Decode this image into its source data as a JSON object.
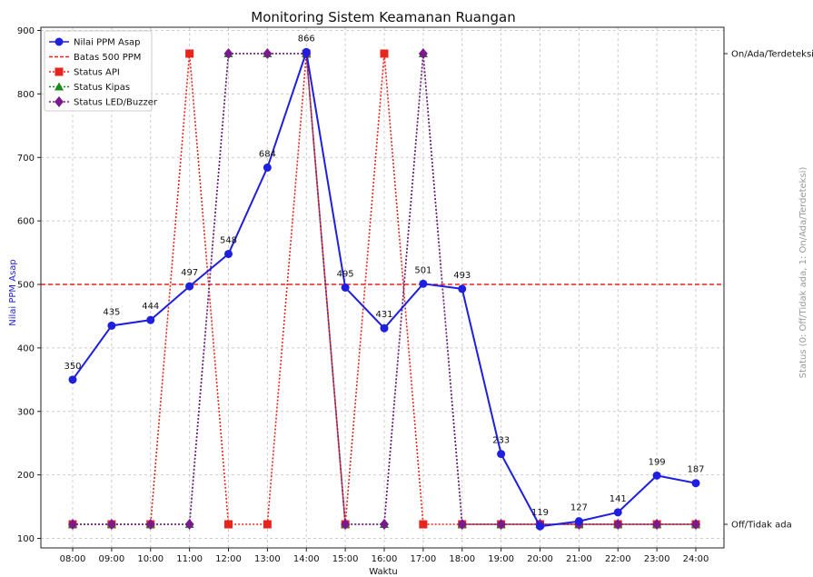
{
  "chart_data": {
    "type": "line",
    "title": "Monitoring Sistem Keamanan Ruangan",
    "xlabel": "Waktu",
    "ylabel": "Nilai PPM Asap",
    "ylabel_right": "Status (0: Off/Tidak ada, 1: On/Ada/Terdeteksi)",
    "categories": [
      "08:00",
      "09:00",
      "10:00",
      "11:00",
      "12:00",
      "13:00",
      "14:00",
      "15:00",
      "16:00",
      "17:00",
      "18:00",
      "19:00",
      "20:00",
      "21:00",
      "22:00",
      "23:00",
      "24:00"
    ],
    "ylim": [
      85,
      905
    ],
    "yticks": [
      100,
      200,
      300,
      400,
      500,
      600,
      700,
      800,
      900
    ],
    "right_ticks": [
      {
        "value": 0,
        "label": "Off/Tidak ada"
      },
      {
        "value": 1,
        "label": "On/Ada/Terdeteksi"
      }
    ],
    "grid": true,
    "legend_position": "top-left",
    "threshold": {
      "name": "Batas 500 PPM",
      "value": 500,
      "color": "#e8241e"
    },
    "series": [
      {
        "name": "Nilai PPM Asap",
        "color": "#1f1fe0",
        "axis": "left",
        "style": "solid",
        "marker": "circle",
        "values": [
          350,
          435,
          444,
          497,
          548,
          684,
          866,
          495,
          431,
          501,
          493,
          233,
          119,
          127,
          141,
          199,
          187
        ]
      },
      {
        "name": "Status API",
        "color": "#e8241e",
        "axis": "right",
        "style": "dotted",
        "marker": "square",
        "values": [
          0,
          0,
          0,
          1,
          0,
          0,
          1,
          0,
          1,
          0,
          0,
          0,
          0,
          0,
          0,
          0,
          0
        ]
      },
      {
        "name": "Status Kipas",
        "color": "#1a8a1a",
        "axis": "right",
        "style": "dotted",
        "marker": "triangle",
        "values": [
          0,
          0,
          0,
          0,
          1,
          1,
          1,
          0,
          0,
          1,
          0,
          0,
          0,
          0,
          0,
          0,
          0
        ]
      },
      {
        "name": "Status LED/Buzzer",
        "color": "#7b1a8c",
        "axis": "right",
        "style": "dotted",
        "marker": "diamond",
        "values": [
          0,
          0,
          0,
          0,
          1,
          1,
          1,
          0,
          0,
          1,
          0,
          0,
          0,
          0,
          0,
          0,
          0
        ]
      }
    ],
    "data_labels": [
      "350",
      "435",
      "444",
      "497",
      "548",
      "684",
      "866",
      "495",
      "431",
      "501",
      "493",
      "233",
      "119",
      "127",
      "141",
      "199",
      "187"
    ]
  }
}
